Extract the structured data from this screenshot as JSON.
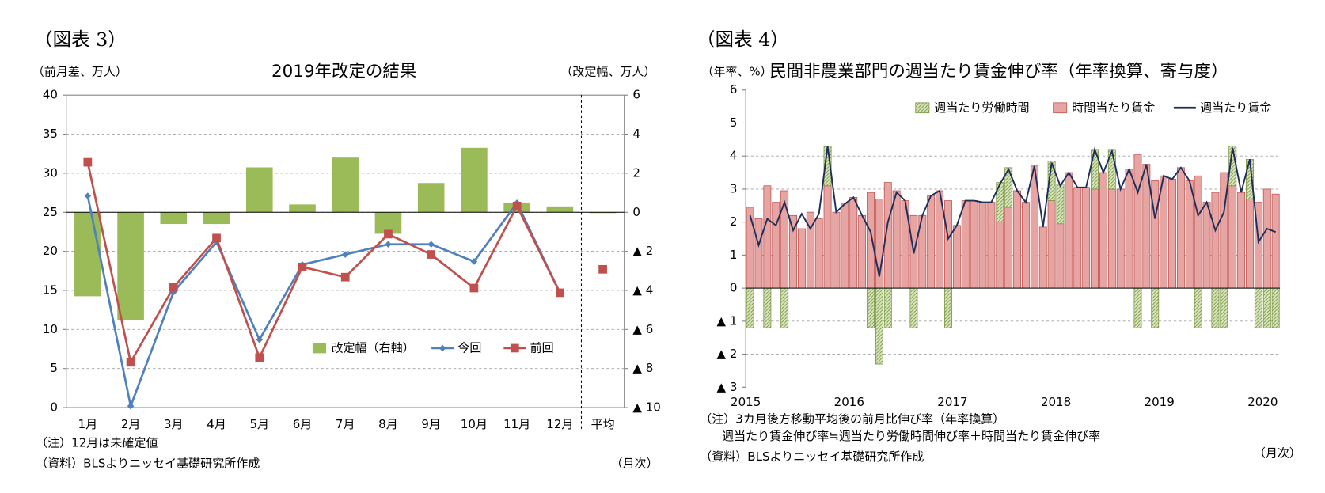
{
  "chart_data": [
    {
      "type": "combo",
      "figure_label": "（図表 3）",
      "title": "2019年改定の結果",
      "y_label": "（前月差、万人）",
      "y2_label": "（改定幅、万人）",
      "x_unit": "（月次）",
      "notes": [
        "（注）12月は未確定値",
        "（資料）BLSよりニッセイ基礎研究所作成"
      ],
      "categories": [
        "1月",
        "2月",
        "3月",
        "4月",
        "5月",
        "6月",
        "7月",
        "8月",
        "9月",
        "10月",
        "11月",
        "12月",
        "平均"
      ],
      "ylim": [
        0,
        40
      ],
      "yticks": [
        0,
        5,
        10,
        15,
        20,
        25,
        30,
        35,
        40
      ],
      "y2lim": [
        -10,
        6
      ],
      "y2ticks": [
        {
          "value": -10,
          "label": "▲ 10"
        },
        {
          "value": -8,
          "label": "▲ 8"
        },
        {
          "value": -6,
          "label": "▲ 6"
        },
        {
          "value": -4,
          "label": "▲ 4"
        },
        {
          "value": -2,
          "label": "▲ 2"
        },
        0,
        2,
        4,
        6
      ],
      "grid": true,
      "divider": 12,
      "series": [
        {
          "name": "改定幅（右軸）",
          "type": "bar",
          "axis": "y2",
          "color": "#9bbb59",
          "values": [
            -4.3,
            -5.5,
            -0.6,
            -0.6,
            2.3,
            0.4,
            2.8,
            -1.1,
            1.5,
            3.3,
            0.5,
            0.3,
            0
          ]
        },
        {
          "name": "今回",
          "type": "line",
          "color": "#4f81bd",
          "values": [
            27.1,
            0.2,
            14.8,
            21.2,
            8.7,
            18.3,
            19.6,
            20.9,
            20.9,
            18.7,
            26.2,
            14.7,
            null
          ]
        },
        {
          "name": "前回",
          "type": "line",
          "color": "#c0504d",
          "values": [
            31.4,
            5.8,
            15.4,
            21.7,
            6.4,
            18.0,
            16.7,
            22.2,
            19.6,
            15.3,
            25.8,
            14.7,
            17.7
          ]
        }
      ]
    },
    {
      "type": "stacked",
      "figure_label": "（図表 4）",
      "title": "民間非農業部門の週当たり賃金伸び率（年率換算、寄与度）",
      "y_label": "（年率、%）",
      "x_unit": "（月次）",
      "notes": [
        "（注）3カ月後方移動平均後の前月比伸び率（年率換算）",
        "週当たり賃金伸び率≒週当たり労働時間伸び率＋時間当たり賃金伸び率",
        "（資料）BLSよりニッセイ基礎研究所作成"
      ],
      "categories": [
        "2015",
        null,
        null,
        null,
        null,
        null,
        null,
        null,
        null,
        null,
        null,
        null,
        "2016",
        null,
        null,
        null,
        null,
        null,
        null,
        null,
        null,
        null,
        null,
        null,
        "2017",
        null,
        null,
        null,
        null,
        null,
        null,
        null,
        null,
        null,
        null,
        null,
        "2018",
        null,
        null,
        null,
        null,
        null,
        null,
        null,
        null,
        null,
        null,
        null,
        "2019",
        null,
        null,
        null,
        null,
        null,
        null,
        null,
        null,
        null,
        null,
        null,
        "2020",
        null
      ],
      "ylim": [
        -3,
        6
      ],
      "yticks": [
        {
          "value": -3,
          "label": "▲ 3"
        },
        {
          "value": -2,
          "label": "▲ 2"
        },
        {
          "value": -1,
          "label": "▲ 1"
        },
        0,
        1,
        2,
        3,
        4,
        5,
        6
      ],
      "grid": true,
      "series": [
        {
          "name": "週当たり労働時間",
          "type": "bar",
          "color": "#d7e4bd",
          "hatch": true,
          "values": [
            -1.2,
            0,
            -1.2,
            0,
            -1.2,
            0,
            0,
            0,
            0,
            1.2,
            0,
            0,
            0,
            0,
            -1.2,
            -2.3,
            -1.2,
            0,
            0,
            -1.2,
            0,
            0,
            0,
            -1.2,
            0,
            0,
            0,
            0,
            0,
            1.2,
            1.2,
            0,
            0,
            0,
            0,
            1.2,
            1.2,
            0,
            0,
            0,
            1.2,
            0,
            1.2,
            0,
            0,
            -1.2,
            0,
            -1.2,
            0,
            0,
            0,
            0,
            -1.2,
            0,
            -1.2,
            -1.2,
            1.2,
            0,
            1.2,
            -1.2,
            -1.2,
            -1.2
          ]
        },
        {
          "name": "時間当たり賃金",
          "type": "bar",
          "color": "#e6a4a3",
          "values": [
            2.45,
            2.1,
            3.1,
            2.6,
            2.95,
            2.2,
            1.8,
            2.3,
            2.1,
            3.1,
            2.3,
            2.55,
            2.75,
            2.2,
            2.9,
            2.7,
            3.2,
            2.95,
            2.65,
            2.2,
            2.2,
            2.8,
            2.95,
            2.65,
            1.9,
            2.65,
            2.65,
            2.6,
            2.6,
            2.0,
            2.45,
            2.95,
            2.6,
            3.7,
            1.85,
            2.65,
            1.95,
            3.5,
            3.05,
            3.05,
            3.0,
            3.5,
            3.0,
            3.0,
            3.6,
            4.05,
            3.75,
            3.25,
            3.4,
            3.3,
            3.65,
            3.25,
            3.4,
            2.6,
            2.9,
            3.5,
            3.1,
            2.9,
            2.7,
            2.6,
            3.0,
            2.85
          ]
        },
        {
          "name": "週当たり賃金",
          "type": "line",
          "color": "#1f2f5a",
          "values": [
            2.2,
            1.3,
            2.1,
            1.9,
            2.6,
            1.75,
            2.25,
            1.8,
            2.25,
            4.3,
            2.3,
            2.55,
            2.75,
            2.2,
            1.7,
            0.35,
            2.0,
            2.9,
            2.65,
            1.05,
            2.2,
            2.8,
            2.95,
            1.5,
            1.9,
            2.65,
            2.65,
            2.6,
            2.6,
            3.15,
            3.6,
            2.95,
            2.6,
            3.7,
            1.85,
            3.8,
            3.1,
            3.5,
            3.05,
            3.05,
            4.2,
            3.5,
            4.15,
            3.0,
            3.6,
            2.9,
            3.75,
            2.1,
            3.4,
            3.3,
            3.65,
            3.25,
            2.2,
            2.6,
            1.75,
            2.3,
            4.25,
            2.9,
            3.9,
            1.4,
            1.8,
            1.7
          ]
        }
      ]
    }
  ]
}
